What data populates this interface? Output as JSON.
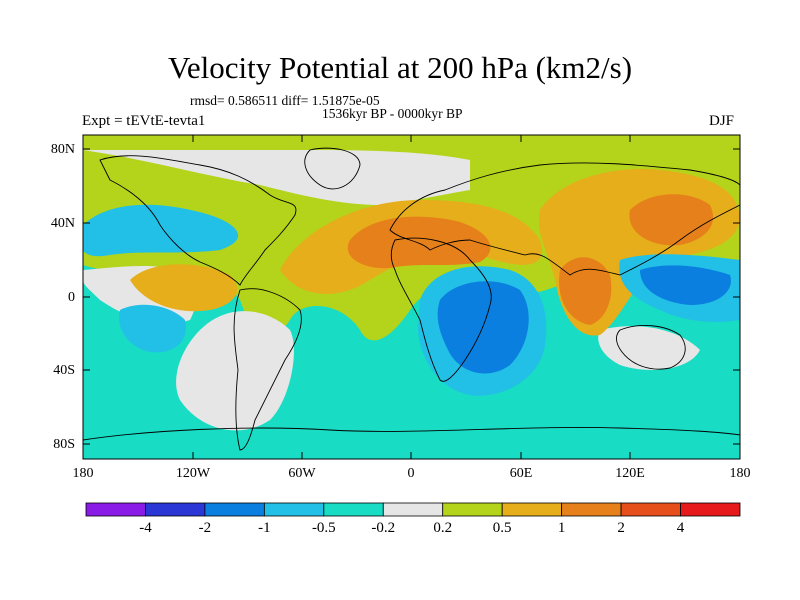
{
  "title": "Velocity Potential at 200 hPa (km2/s)",
  "stats_line": "rmsd= 0.586511 diff= 1.51875e-05",
  "period": "1536kyr BP - 0000kyr BP",
  "experiment": "Expt = tEVtE-tevta1",
  "season": "DJF",
  "axes": {
    "y_ticks": [
      "80N",
      "40N",
      "0",
      "40S",
      "80S"
    ],
    "x_ticks": [
      "180",
      "120W",
      "60W",
      "0",
      "60E",
      "120E",
      "180"
    ]
  },
  "colorbar": {
    "colors": [
      "#8a1ae6",
      "#2a37d4",
      "#0b7fe0",
      "#22c0e6",
      "#18dcc4",
      "#e6e6e6",
      "#b3d41a",
      "#e6ae1a",
      "#e6801a",
      "#e64e1a",
      "#e61a1a"
    ],
    "labels": [
      "-4",
      "-2",
      "-1",
      "-0.5",
      "-0.2",
      "0.2",
      "0.5",
      "1",
      "2",
      "4"
    ]
  },
  "map_colors": {
    "pos_weak": "#b3d41a",
    "pos_mid": "#e6ae1a",
    "pos_strong": "#e6801a",
    "neg_weak": "#18dcc4",
    "neg_mid": "#22c0e6",
    "neg_strong": "#0b7fe0",
    "neutral": "#e6e6e6"
  }
}
